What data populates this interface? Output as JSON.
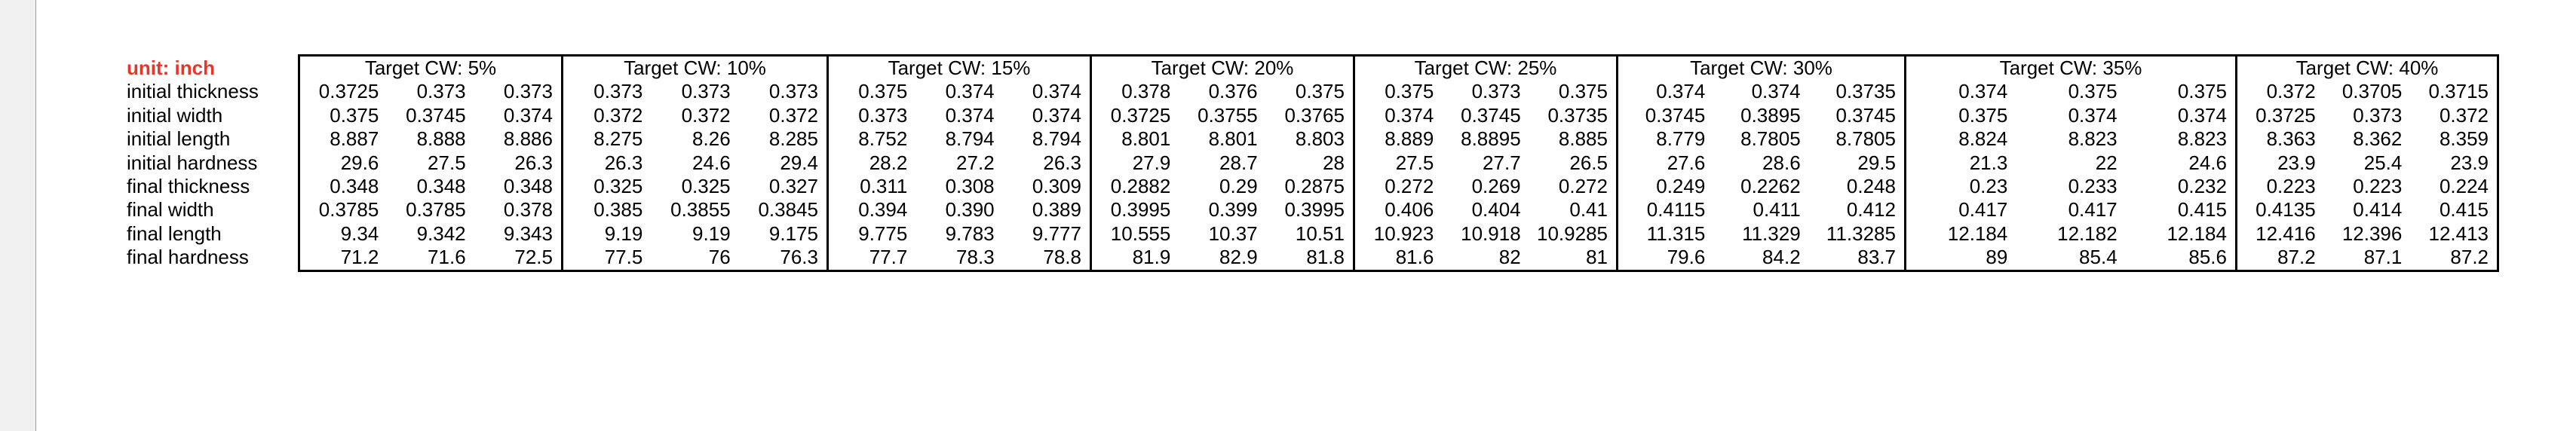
{
  "unit_label": "unit: inch",
  "row_labels": [
    "initial thickness",
    "initial width",
    "initial length",
    "initial hardness",
    "final thickness",
    "final width",
    "final length",
    "final hardness"
  ],
  "sections": [
    {
      "header": "Target CW: 5%",
      "rows": [
        [
          "0.3725",
          "0.373",
          "0.373"
        ],
        [
          "0.375",
          "0.3745",
          "0.374"
        ],
        [
          "8.887",
          "8.888",
          "8.886"
        ],
        [
          "29.6",
          "27.5",
          "26.3"
        ],
        [
          "0.348",
          "0.348",
          "0.348"
        ],
        [
          "0.3785",
          "0.3785",
          "0.378"
        ],
        [
          "9.34",
          "9.342",
          "9.343"
        ],
        [
          "71.2",
          "71.6",
          "72.5"
        ]
      ]
    },
    {
      "header": "Target CW: 10%",
      "rows": [
        [
          "0.373",
          "0.373",
          "0.373"
        ],
        [
          "0.372",
          "0.372",
          "0.372"
        ],
        [
          "8.275",
          "8.26",
          "8.285"
        ],
        [
          "26.3",
          "24.6",
          "29.4"
        ],
        [
          "0.325",
          "0.325",
          "0.327"
        ],
        [
          "0.385",
          "0.3855",
          "0.3845"
        ],
        [
          "9.19",
          "9.19",
          "9.175"
        ],
        [
          "77.5",
          "76",
          "76.3"
        ]
      ]
    },
    {
      "header": "Target CW: 15%",
      "rows": [
        [
          "0.375",
          "0.374",
          "0.374"
        ],
        [
          "0.373",
          "0.374",
          "0.374"
        ],
        [
          "8.752",
          "8.794",
          "8.794"
        ],
        [
          "28.2",
          "27.2",
          "26.3"
        ],
        [
          "0.311",
          "0.308",
          "0.309"
        ],
        [
          "0.394",
          "0.390",
          "0.389"
        ],
        [
          "9.775",
          "9.783",
          "9.777"
        ],
        [
          "77.7",
          "78.3",
          "78.8"
        ]
      ]
    },
    {
      "header": "Target CW: 20%",
      "rows": [
        [
          "0.378",
          "0.376",
          "0.375"
        ],
        [
          "0.3725",
          "0.3755",
          "0.3765"
        ],
        [
          "8.801",
          "8.801",
          "8.803"
        ],
        [
          "27.9",
          "28.7",
          "28"
        ],
        [
          "0.2882",
          "0.29",
          "0.2875"
        ],
        [
          "0.3995",
          "0.399",
          "0.3995"
        ],
        [
          "10.555",
          "10.37",
          "10.51"
        ],
        [
          "81.9",
          "82.9",
          "81.8"
        ]
      ]
    },
    {
      "header": "Target CW: 25%",
      "rows": [
        [
          "0.375",
          "0.373",
          "0.375"
        ],
        [
          "0.374",
          "0.3745",
          "0.3735"
        ],
        [
          "8.889",
          "8.8895",
          "8.885"
        ],
        [
          "27.5",
          "27.7",
          "26.5"
        ],
        [
          "0.272",
          "0.269",
          "0.272"
        ],
        [
          "0.406",
          "0.404",
          "0.41"
        ],
        [
          "10.923",
          "10.918",
          "10.9285"
        ],
        [
          "81.6",
          "82",
          "81"
        ]
      ]
    },
    {
      "header": "Target CW: 30%",
      "rows": [
        [
          "0.374",
          "0.374",
          "0.3735"
        ],
        [
          "0.3745",
          "0.3895",
          "0.3745"
        ],
        [
          "8.779",
          "8.7805",
          "8.7805"
        ],
        [
          "27.6",
          "28.6",
          "29.5"
        ],
        [
          "0.249",
          "0.2262",
          "0.248"
        ],
        [
          "0.4115",
          "0.411",
          "0.412"
        ],
        [
          "11.315",
          "11.329",
          "11.3285"
        ],
        [
          "79.6",
          "84.2",
          "83.7"
        ]
      ]
    },
    {
      "header": "Target CW: 35%",
      "rows": [
        [
          "0.374",
          "0.375",
          "0.375"
        ],
        [
          "0.375",
          "0.374",
          "0.374"
        ],
        [
          "8.824",
          "8.823",
          "8.823"
        ],
        [
          "21.3",
          "22",
          "24.6"
        ],
        [
          "0.23",
          "0.233",
          "0.232"
        ],
        [
          "0.417",
          "0.417",
          "0.415"
        ],
        [
          "12.184",
          "12.182",
          "12.184"
        ],
        [
          "89",
          "85.4",
          "85.6"
        ]
      ]
    },
    {
      "header": "Target CW: 40%",
      "rows": [
        [
          "0.372",
          "0.3705",
          "0.3715"
        ],
        [
          "0.3725",
          "0.373",
          "0.372"
        ],
        [
          "8.363",
          "8.362",
          "8.359"
        ],
        [
          "23.9",
          "25.4",
          "23.9"
        ],
        [
          "0.223",
          "0.223",
          "0.224"
        ],
        [
          "0.4135",
          "0.414",
          "0.415"
        ],
        [
          "12.416",
          "12.396",
          "12.413"
        ],
        [
          "87.2",
          "87.1",
          "87.2"
        ]
      ]
    }
  ],
  "colors": {
    "unit_label_red": "#e8362a",
    "table_border": "#000000",
    "left_strip_bg": "#f0f0f1",
    "left_strip_line": "#9c9c9c"
  }
}
